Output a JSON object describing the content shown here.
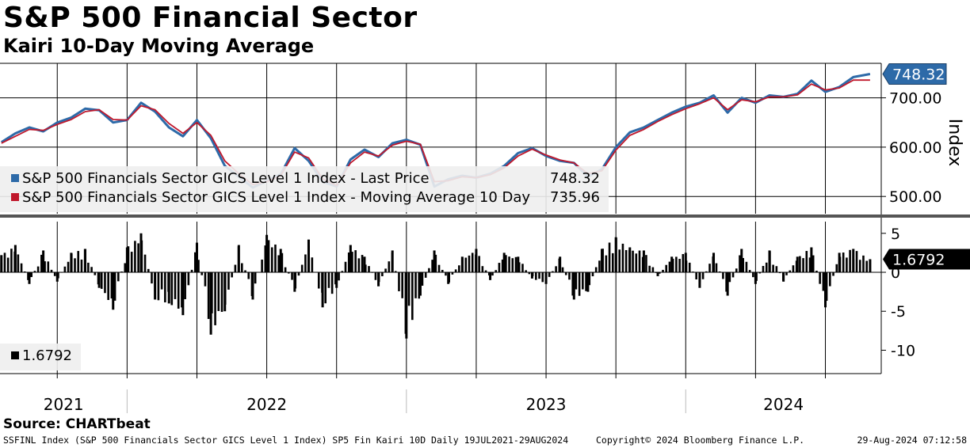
{
  "header": {
    "title": "S&P 500 Financial Sector",
    "subtitle": "Kairi 10-Day Moving Average"
  },
  "source": "Source: CHARTbeat",
  "footer": {
    "left": "SSFINL Index (S&P 500 Financials Sector GICS Level 1 Index) SP5 Fin Kairi 10D  Daily 19JUL2021-29AUG2024",
    "center": "Copyright© 2024 Bloomberg Finance L.P.",
    "right": "29-Aug-2024 07:12:58"
  },
  "colors": {
    "price": "#2d6aa8",
    "ma": "#c0182c",
    "kairi": "#000000",
    "grid": "#000000"
  },
  "legend": {
    "price_label": "S&P 500 Financials Sector GICS Level 1 Index - Last Price",
    "price_value": "748.32",
    "ma_label": "S&P 500 Financials Sector GICS Level 1 Index - Moving Average 10 Day",
    "ma_value": "735.96",
    "kairi_value": "1.6792"
  },
  "chart_data": [
    {
      "type": "line",
      "title": "S&P 500 Financial Sector",
      "ylabel": "Index",
      "ylim": [
        465,
        770
      ],
      "yticks": [
        500,
        600,
        700
      ],
      "ytick_labels": [
        "500.00",
        "600.00",
        "700.00"
      ],
      "last_value_label": "748.32",
      "x_range": [
        "2021-07-19",
        "2024-08-29"
      ],
      "x_labels": [
        "2021",
        "2022",
        "2023",
        "2024"
      ],
      "series": [
        {
          "name": "S&P 500 Financials Sector GICS Level 1 Index - Last Price",
          "x": [
            2021.55,
            2021.6,
            2021.65,
            2021.7,
            2021.75,
            2021.8,
            2021.85,
            2021.9,
            2021.95,
            2022.0,
            2022.05,
            2022.1,
            2022.15,
            2022.2,
            2022.25,
            2022.3,
            2022.35,
            2022.4,
            2022.45,
            2022.5,
            2022.55,
            2022.6,
            2022.65,
            2022.7,
            2022.75,
            2022.8,
            2022.85,
            2022.9,
            2022.95,
            2023.0,
            2023.05,
            2023.1,
            2023.15,
            2023.2,
            2023.25,
            2023.3,
            2023.35,
            2023.4,
            2023.45,
            2023.5,
            2023.55,
            2023.6,
            2023.65,
            2023.7,
            2023.75,
            2023.8,
            2023.85,
            2023.9,
            2023.95,
            2024.0,
            2024.05,
            2024.1,
            2024.15,
            2024.2,
            2024.25,
            2024.3,
            2024.35,
            2024.4,
            2024.45,
            2024.5,
            2024.55,
            2024.6,
            2024.66
          ],
          "values": [
            610,
            628,
            640,
            632,
            650,
            660,
            678,
            675,
            650,
            655,
            690,
            672,
            640,
            622,
            655,
            618,
            562,
            540,
            518,
            532,
            545,
            598,
            572,
            530,
            520,
            575,
            595,
            580,
            608,
            615,
            605,
            520,
            535,
            542,
            538,
            546,
            562,
            588,
            598,
            582,
            572,
            568,
            540,
            555,
            600,
            630,
            640,
            655,
            670,
            682,
            690,
            705,
            670,
            700,
            690,
            705,
            702,
            708,
            735,
            712,
            722,
            742,
            748.32
          ]
        },
        {
          "name": "S&P 500 Financials Sector GICS Level 1 Index - Moving Average 10 Day",
          "x": [
            2021.55,
            2021.6,
            2021.65,
            2021.7,
            2021.75,
            2021.8,
            2021.85,
            2021.9,
            2021.95,
            2022.0,
            2022.05,
            2022.1,
            2022.15,
            2022.2,
            2022.25,
            2022.3,
            2022.35,
            2022.4,
            2022.45,
            2022.5,
            2022.55,
            2022.6,
            2022.65,
            2022.7,
            2022.75,
            2022.8,
            2022.85,
            2022.9,
            2022.95,
            2023.0,
            2023.05,
            2023.1,
            2023.15,
            2023.2,
            2023.25,
            2023.3,
            2023.35,
            2023.4,
            2023.45,
            2023.5,
            2023.55,
            2023.6,
            2023.65,
            2023.7,
            2023.75,
            2023.8,
            2023.85,
            2023.9,
            2023.95,
            2024.0,
            2024.05,
            2024.1,
            2024.15,
            2024.2,
            2024.25,
            2024.3,
            2024.35,
            2024.4,
            2024.45,
            2024.5,
            2024.55,
            2024.6,
            2024.66
          ],
          "values": [
            608,
            622,
            636,
            634,
            646,
            656,
            672,
            676,
            656,
            655,
            684,
            676,
            648,
            628,
            650,
            624,
            572,
            546,
            524,
            530,
            542,
            590,
            578,
            536,
            522,
            568,
            590,
            582,
            604,
            612,
            606,
            530,
            532,
            540,
            538,
            544,
            558,
            582,
            596,
            584,
            574,
            568,
            546,
            552,
            594,
            624,
            636,
            652,
            666,
            678,
            688,
            700,
            676,
            696,
            692,
            702,
            702,
            706,
            728,
            716,
            720,
            736,
            735.96
          ]
        }
      ]
    },
    {
      "type": "bar",
      "title": "Kairi 10-Day Moving Average",
      "ylim": [
        -13,
        6.5
      ],
      "yticks": [
        5,
        0,
        -5,
        -10
      ],
      "ytick_labels": [
        "5",
        "0",
        "-5",
        "-10"
      ],
      "last_value_label": "1.6792",
      "series": [
        {
          "name": "Kairi 10D",
          "x": [
            2021.55,
            2021.6,
            2021.65,
            2021.7,
            2021.75,
            2021.8,
            2021.85,
            2021.9,
            2021.95,
            2022.0,
            2022.05,
            2022.1,
            2022.15,
            2022.2,
            2022.25,
            2022.3,
            2022.35,
            2022.4,
            2022.45,
            2022.5,
            2022.55,
            2022.6,
            2022.65,
            2022.7,
            2022.75,
            2022.8,
            2022.85,
            2022.9,
            2022.95,
            2023.0,
            2023.05,
            2023.1,
            2023.15,
            2023.2,
            2023.25,
            2023.3,
            2023.35,
            2023.4,
            2023.45,
            2023.5,
            2023.55,
            2023.6,
            2023.65,
            2023.7,
            2023.75,
            2023.8,
            2023.85,
            2023.9,
            2023.95,
            2024.0,
            2024.05,
            2024.1,
            2024.15,
            2024.2,
            2024.25,
            2024.3,
            2024.35,
            2024.4,
            2024.45,
            2024.5,
            2024.55,
            2024.6,
            2024.66
          ],
          "values": [
            2.2,
            3.5,
            -1.5,
            2.8,
            -1.2,
            2.5,
            3.0,
            -2.0,
            -4.8,
            3.2,
            5.0,
            -3.5,
            -4.0,
            -5.5,
            3.8,
            -8.0,
            -5.0,
            3.5,
            -3.5,
            4.8,
            3.0,
            -2.5,
            4.2,
            -4.5,
            -2.0,
            3.5,
            2.0,
            -1.8,
            2.8,
            -8.5,
            -3.0,
            2.8,
            -1.5,
            2.0,
            3.0,
            -1.0,
            2.5,
            2.0,
            -0.8,
            -1.5,
            2.0,
            -3.5,
            -2.5,
            3.0,
            4.5,
            3.2,
            2.8,
            -0.5,
            2.0,
            2.5,
            -2.0,
            2.5,
            -3.0,
            3.0,
            -1.5,
            2.8,
            -1.2,
            2.0,
            3.2,
            -4.5,
            2.5,
            3.0,
            1.6792
          ]
        }
      ]
    }
  ]
}
